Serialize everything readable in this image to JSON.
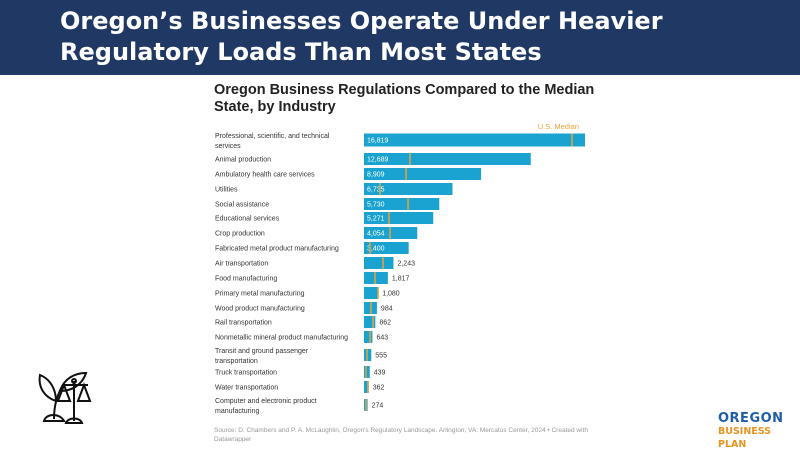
{
  "header": {
    "title": "Oregon’s Businesses Operate Under Heavier Regulatory Loads Than Most States"
  },
  "chart_data": {
    "type": "bar",
    "orientation": "horizontal",
    "title": "Oregon Business Regulations Compared to the Median State, by Industry",
    "marker_label": "U.S. Median",
    "categories": [
      "Professional, scientific, and technical services",
      "Animal production",
      "Ambulatory health care services",
      "Utilities",
      "Social assistance",
      "Educational services",
      "Crop production",
      "Fabricated metal product manufacturing",
      "Air transportation",
      "Food manufacturing",
      "Primary metal manufacturing",
      "Wood product manufacturing",
      "Rail transportation",
      "Nonmetallic mineral product manufacturing",
      "Transit and ground passenger transportation",
      "Truck transportation",
      "Water transportation",
      "Computer and electronic product manufacturing"
    ],
    "values": [
      16819,
      12689,
      8909,
      6735,
      5730,
      5271,
      4054,
      3400,
      2243,
      1817,
      1080,
      984,
      862,
      643,
      555,
      439,
      362,
      274
    ],
    "value_labels": [
      "16,819",
      "12,689",
      "8,909",
      "6,735",
      "5,730",
      "5,271",
      "4,054",
      "3,400",
      "2,243",
      "1,817",
      "1,080",
      "984",
      "862",
      "643",
      "555",
      "439",
      "362",
      "274"
    ],
    "us_median": [
      15830,
      3500,
      3200,
      1220,
      3350,
      1900,
      1980,
      460,
      1450,
      840,
      1070,
      530,
      690,
      460,
      230,
      150,
      300,
      150
    ],
    "xlim": [
      0,
      16819
    ],
    "colors": {
      "bar": "#1aa3d0",
      "median": "#e8a33a"
    }
  },
  "source": "Source: D. Chambers and P. A. McLaughlin, Oregon's Regulatory Landscape. Arlington, VA: Mercatus Center, 2024 • Created with Datawrapper",
  "logo": {
    "line1": "OREGON",
    "line2": "BUSINESS PLAN"
  }
}
